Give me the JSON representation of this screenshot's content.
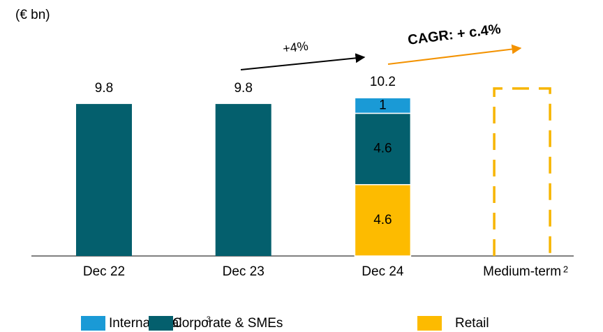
{
  "chart_data": {
    "type": "stacked_bar",
    "unit_label": "(€ bn)",
    "categories": [
      "Dec 22",
      "Dec 23",
      "Dec 24",
      "Medium-term"
    ],
    "category_notes": [
      null,
      null,
      null,
      "2"
    ],
    "series": [
      {
        "name": "International",
        "note": "3",
        "color": "#1a9ad6",
        "values": [
          null,
          null,
          1.0,
          null
        ]
      },
      {
        "name": "Corporate & SMEs",
        "color": "#045f6d",
        "values": [
          9.8,
          9.8,
          4.6,
          null
        ]
      },
      {
        "name": "Retail",
        "color": "#fdbb00",
        "values": [
          null,
          null,
          4.6,
          null
        ]
      }
    ],
    "totals": [
      9.8,
      9.8,
      10.2,
      null
    ],
    "target_values": [
      null,
      null,
      null,
      10.8
    ],
    "target_color": "#f7b500",
    "ylim": [
      0,
      11
    ],
    "annotations": [
      {
        "text": "+4%",
        "color": "#000000",
        "from": 1,
        "to": 2
      },
      {
        "text": "CAGR: + c.4%",
        "color": "#f39200",
        "from": 2,
        "to": 3
      }
    ]
  }
}
